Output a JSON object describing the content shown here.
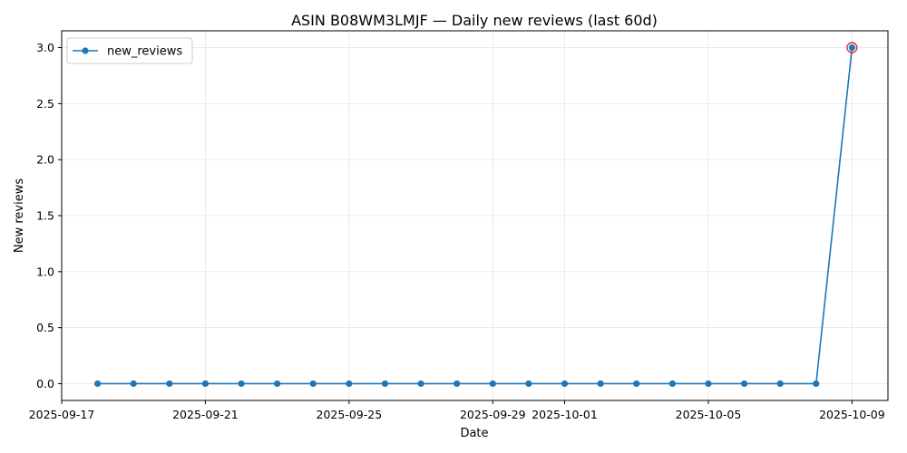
{
  "chart_data": {
    "type": "line",
    "title": "ASIN B08WM3LMJF — Daily new reviews (last 60d)",
    "xlabel": "Date",
    "ylabel": "New reviews",
    "x": [
      "2025-09-18",
      "2025-09-19",
      "2025-09-20",
      "2025-09-21",
      "2025-09-22",
      "2025-09-23",
      "2025-09-24",
      "2025-09-25",
      "2025-09-26",
      "2025-09-27",
      "2025-09-28",
      "2025-09-29",
      "2025-09-30",
      "2025-10-01",
      "2025-10-02",
      "2025-10-03",
      "2025-10-04",
      "2025-10-05",
      "2025-10-06",
      "2025-10-07",
      "2025-10-08",
      "2025-10-09"
    ],
    "series": [
      {
        "name": "new_reviews",
        "color": "#1f77b4",
        "marker": "circle",
        "values": [
          0,
          0,
          0,
          0,
          0,
          0,
          0,
          0,
          0,
          0,
          0,
          0,
          0,
          0,
          0,
          0,
          0,
          0,
          0,
          0,
          0,
          3
        ]
      }
    ],
    "highlight": {
      "x": "2025-10-09",
      "y": 3,
      "color": "#d62728"
    },
    "xticks": [
      "2025-09-17",
      "2025-09-21",
      "2025-09-25",
      "2025-09-29",
      "2025-10-01",
      "2025-10-05",
      "2025-10-09"
    ],
    "yticks": [
      0.0,
      0.5,
      1.0,
      1.5,
      2.0,
      2.5,
      3.0
    ],
    "xlim": [
      "2025-09-17",
      "2025-10-10"
    ],
    "ylim": [
      -0.15,
      3.15
    ],
    "grid": true,
    "legend": "top-left"
  }
}
